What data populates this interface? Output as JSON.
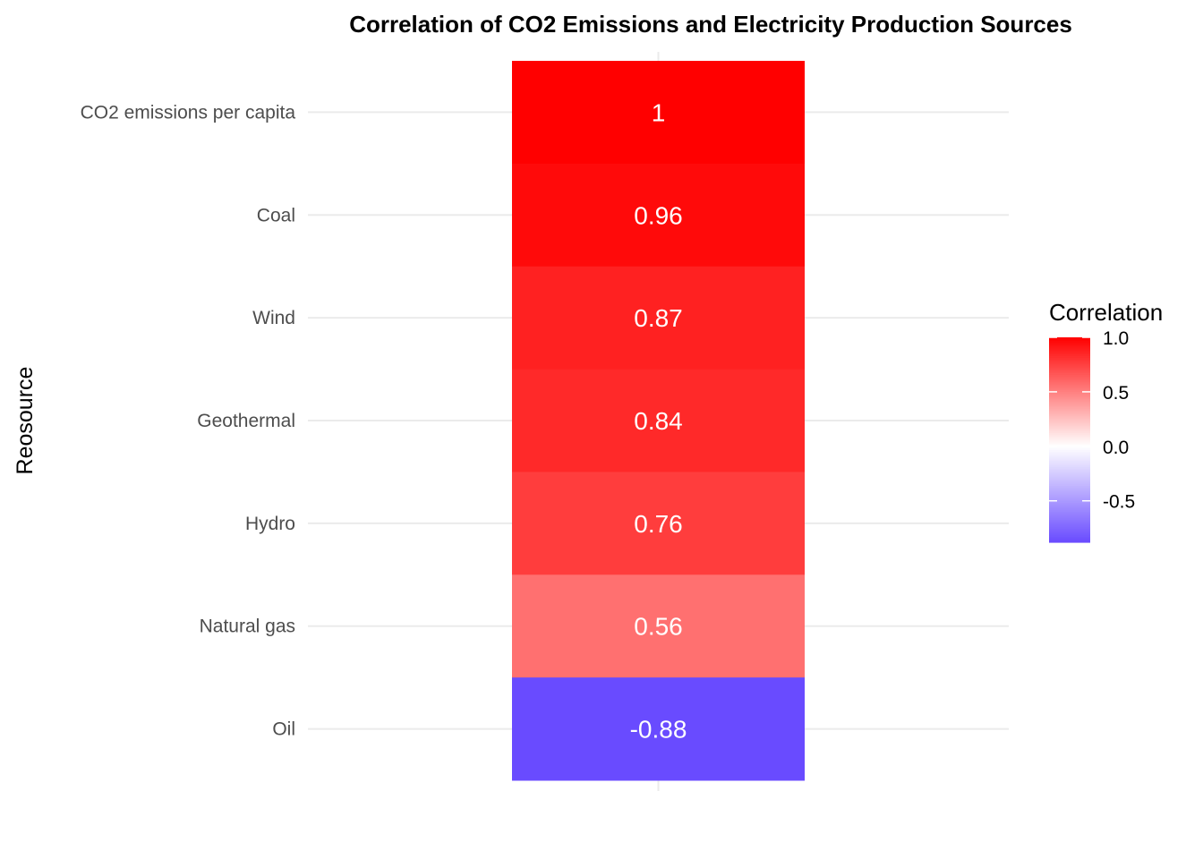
{
  "chart_data": {
    "type": "heatmap",
    "title": "Correlation of CO2 Emissions and Electricity Production Sources",
    "xlabel": "",
    "ylabel": "Reosource",
    "categories": [
      "CO2 emissions per capita",
      "Coal",
      "Wind",
      "Geothermal",
      "Hydro",
      "Natural gas",
      "Oil"
    ],
    "values": [
      1,
      0.96,
      0.87,
      0.84,
      0.76,
      0.56,
      -0.88
    ],
    "value_labels": [
      "1",
      "0.96",
      "0.87",
      "0.84",
      "0.76",
      "0.56",
      "-0.88"
    ],
    "grid": true,
    "legend": {
      "title": "Correlation",
      "placement": "right",
      "ticks": [
        1.0,
        0.5,
        0.0,
        -0.5
      ],
      "tick_labels": [
        "1.0",
        "0.5",
        "0.0",
        "-0.5"
      ],
      "range": [
        -0.88,
        1.0
      ]
    },
    "color_scale": {
      "low": "#5533ff",
      "mid": "#ffffff",
      "high": "#ff0000",
      "midpoint": 0
    }
  }
}
